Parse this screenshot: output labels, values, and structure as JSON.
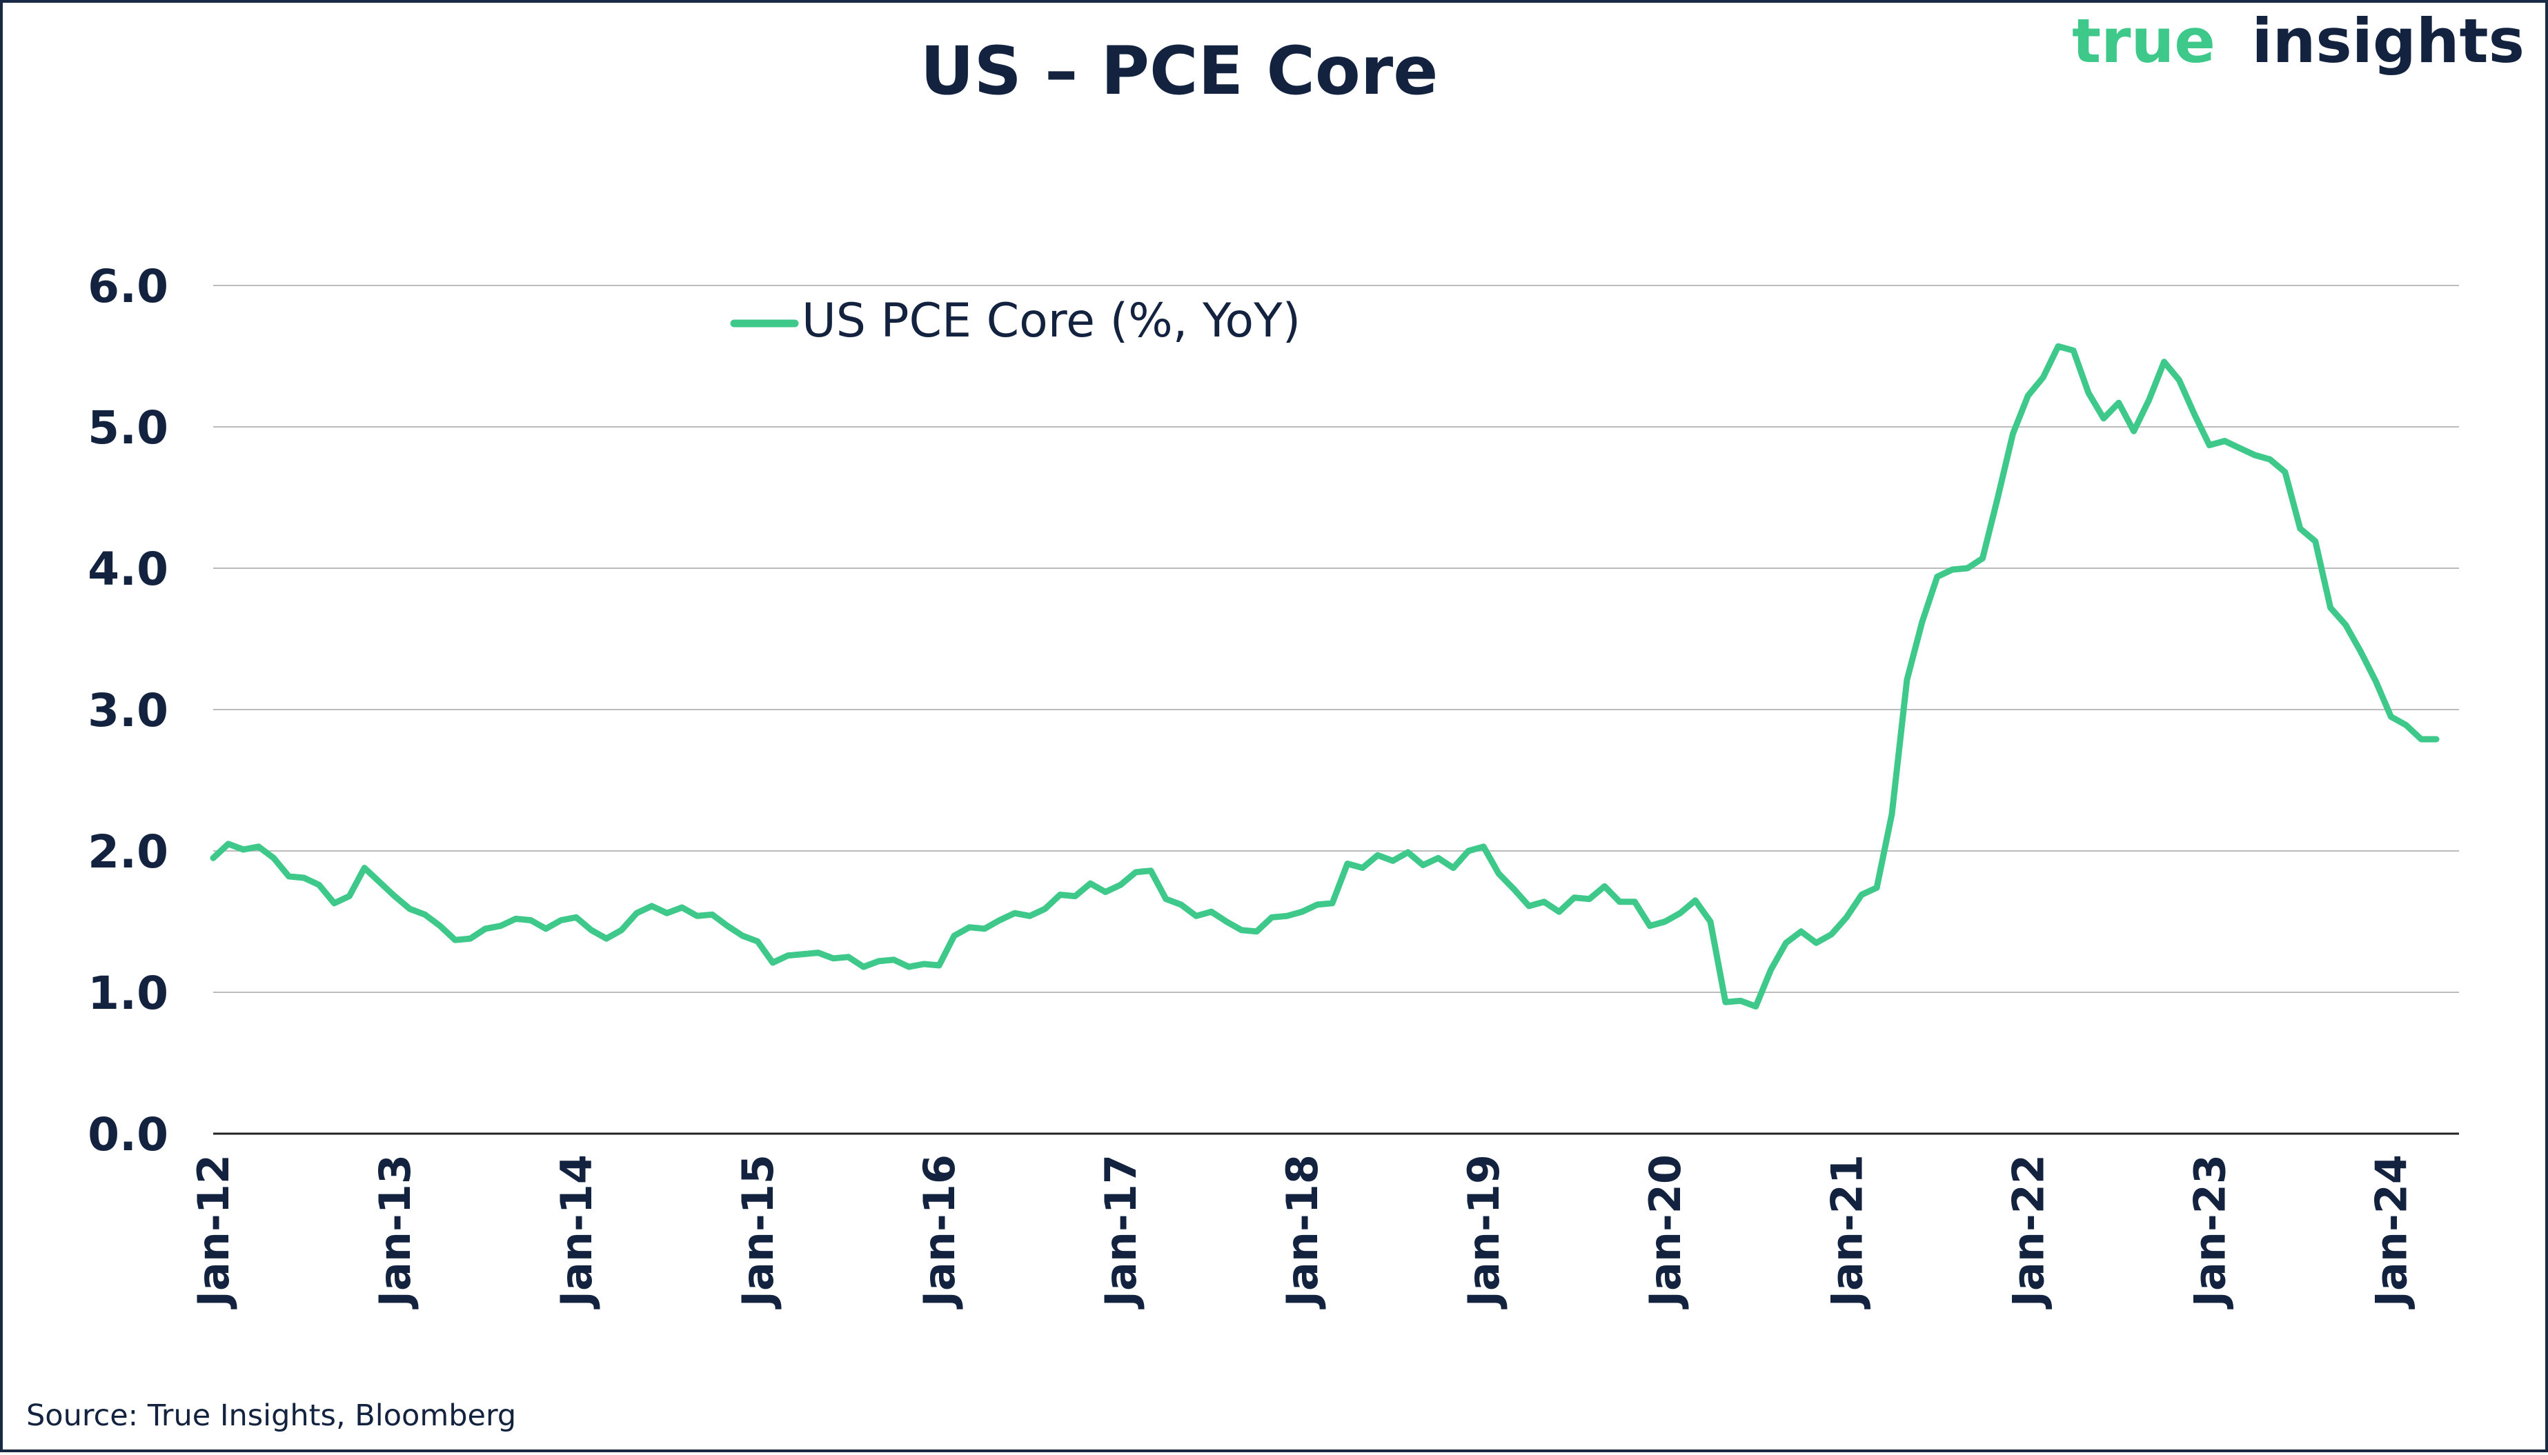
{
  "colors": {
    "navy": "#13233f",
    "green": "#3ec98a",
    "grid": "#bcbcbc",
    "axis": "#222222"
  },
  "brand": {
    "word1": "true",
    "word2": "insights"
  },
  "source": "Source: True Insights, Bloomberg",
  "chart_data": {
    "type": "line",
    "title": "US – PCE Core",
    "xlabel": "",
    "ylabel": "",
    "ylim": [
      0,
      6
    ],
    "yticks": [
      0,
      1,
      2,
      3,
      4,
      5,
      6
    ],
    "ytick_labels": [
      "0.0",
      "1.0",
      "2.0",
      "3.0",
      "4.0",
      "5.0",
      "6.0"
    ],
    "grid": true,
    "legend_position": "top-center",
    "x_start": "Jan-12",
    "x_labels": [
      "Jan-12",
      "Jan-13",
      "Jan-14",
      "Jan-15",
      "Jan-16",
      "Jan-17",
      "Jan-18",
      "Jan-19",
      "Jan-20",
      "Jan-21",
      "Jan-22",
      "Jan-23",
      "Jan-24"
    ],
    "series": [
      {
        "name": "US PCE Core (%, YoY)",
        "frequency": "monthly",
        "values": [
          1.95,
          2.05,
          2.01,
          2.03,
          1.95,
          1.82,
          1.81,
          1.76,
          1.63,
          1.68,
          1.88,
          1.78,
          1.68,
          1.59,
          1.55,
          1.47,
          1.37,
          1.38,
          1.45,
          1.47,
          1.52,
          1.51,
          1.45,
          1.51,
          1.53,
          1.44,
          1.38,
          1.44,
          1.56,
          1.61,
          1.56,
          1.6,
          1.54,
          1.55,
          1.47,
          1.4,
          1.36,
          1.21,
          1.26,
          1.27,
          1.28,
          1.24,
          1.25,
          1.18,
          1.22,
          1.23,
          1.18,
          1.2,
          1.19,
          1.4,
          1.46,
          1.45,
          1.51,
          1.56,
          1.54,
          1.59,
          1.69,
          1.68,
          1.77,
          1.71,
          1.76,
          1.85,
          1.86,
          1.66,
          1.62,
          1.54,
          1.57,
          1.5,
          1.44,
          1.43,
          1.53,
          1.54,
          1.57,
          1.62,
          1.63,
          1.91,
          1.88,
          1.97,
          1.93,
          1.99,
          1.9,
          1.95,
          1.88,
          2.0,
          2.03,
          1.84,
          1.73,
          1.61,
          1.64,
          1.57,
          1.67,
          1.66,
          1.75,
          1.64,
          1.64,
          1.47,
          1.5,
          1.56,
          1.65,
          1.5,
          0.93,
          0.94,
          0.9,
          1.16,
          1.35,
          1.43,
          1.35,
          1.41,
          1.53,
          1.69,
          1.74,
          2.26,
          3.21,
          3.62,
          3.94,
          3.99,
          4.0,
          4.07,
          4.5,
          4.95,
          5.22,
          5.35,
          5.57,
          5.54,
          5.24,
          5.06,
          5.17,
          4.97,
          5.19,
          5.46,
          5.33,
          5.09,
          4.87,
          4.9,
          4.85,
          4.8,
          4.77,
          4.68,
          4.28,
          4.19,
          3.72,
          3.6,
          3.41,
          3.2,
          2.95,
          2.89,
          2.79,
          2.79
        ]
      }
    ]
  }
}
